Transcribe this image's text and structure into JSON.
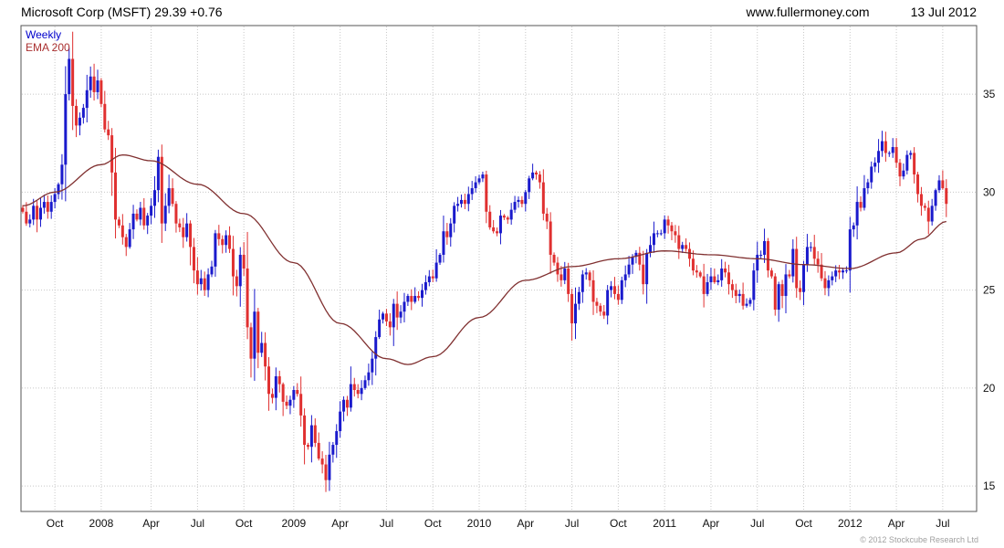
{
  "header": {
    "title": "Microsoft Corp (MSFT) 29.39 +0.76",
    "website": "www.fullermoney.com",
    "date": "13 Jul 2012"
  },
  "legend": {
    "timeframe": "Weekly",
    "overlay": "EMA 200"
  },
  "footer": {
    "copyright": "© 2012 Stockcube Research Ltd"
  },
  "colors": {
    "up": "#1a1acc",
    "down": "#e03030",
    "ema": "#803030",
    "legend_weekly": "#0000cc",
    "legend_ema": "#aa3030",
    "grid": "#c8c8c8",
    "border": "#555555"
  },
  "chart_data": {
    "type": "candlestick",
    "title": "Microsoft Corp (MSFT) 29.39 +0.76",
    "timeframe": "weekly",
    "last_price": 29.39,
    "change": 0.76,
    "ylim": [
      13.7,
      38.5
    ],
    "y_ticks": [
      15,
      20,
      25,
      30,
      35
    ],
    "slots": 268,
    "x_labels": [
      {
        "label": "Oct",
        "index": 9
      },
      {
        "label": "2008",
        "index": 22
      },
      {
        "label": "Apr",
        "index": 36
      },
      {
        "label": "Jul",
        "index": 49
      },
      {
        "label": "Oct",
        "index": 62
      },
      {
        "label": "2009",
        "index": 76
      },
      {
        "label": "Apr",
        "index": 89
      },
      {
        "label": "Jul",
        "index": 102
      },
      {
        "label": "Oct",
        "index": 115
      },
      {
        "label": "2010",
        "index": 128
      },
      {
        "label": "Apr",
        "index": 141
      },
      {
        "label": "Jul",
        "index": 154
      },
      {
        "label": "Oct",
        "index": 167
      },
      {
        "label": "2011",
        "index": 180
      },
      {
        "label": "Apr",
        "index": 193
      },
      {
        "label": "Jul",
        "index": 206
      },
      {
        "label": "Oct",
        "index": 219
      },
      {
        "label": "2012",
        "index": 232
      },
      {
        "label": "Apr",
        "index": 245
      },
      {
        "label": "Jul",
        "index": 258
      }
    ],
    "first_open": 29.2,
    "closes": [
      29.0,
      28.4,
      28.6,
      29.3,
      28.6,
      29.2,
      29.5,
      29.0,
      29.5,
      29.9,
      30.4,
      31.4,
      35.0,
      36.8,
      34.4,
      33.4,
      33.8,
      34.3,
      35.2,
      35.9,
      35.1,
      35.7,
      34.5,
      33.2,
      32.9,
      31.0,
      28.6,
      28.3,
      27.7,
      27.2,
      28.1,
      28.9,
      28.6,
      29.2,
      28.3,
      28.8,
      29.3,
      30.1,
      31.8,
      28.4,
      29.3,
      30.2,
      29.4,
      28.4,
      28.2,
      27.7,
      28.4,
      27.2,
      26.0,
      25.3,
      25.6,
      25.0,
      25.8,
      26.2,
      27.9,
      27.6,
      27.3,
      27.8,
      27.1,
      25.7,
      25.2,
      26.8,
      26.1,
      23.1,
      21.5,
      23.9,
      21.8,
      22.3,
      21.1,
      19.7,
      19.5,
      20.6,
      20.2,
      19.3,
      19.1,
      19.4,
      19.9,
      19.7,
      18.6,
      17.1,
      17.0,
      18.1,
      17.2,
      16.4,
      16.1,
      15.3,
      16.6,
      17.1,
      17.8,
      18.8,
      19.4,
      19.0,
      20.2,
      19.9,
      19.7,
      20.0,
      20.4,
      20.8,
      21.5,
      22.6,
      23.5,
      23.8,
      23.4,
      23.1,
      24.3,
      23.6,
      23.9,
      24.4,
      24.7,
      24.4,
      24.7,
      24.6,
      25.0,
      25.4,
      25.7,
      25.6,
      26.4,
      26.8,
      28.0,
      27.7,
      28.4,
      29.3,
      29.4,
      29.6,
      29.4,
      29.9,
      30.2,
      30.5,
      30.7,
      30.9,
      29.0,
      28.2,
      28.0,
      27.9,
      28.8,
      28.7,
      28.6,
      29.1,
      29.5,
      29.6,
      29.4,
      30.0,
      30.7,
      31.0,
      30.9,
      30.5,
      28.9,
      28.5,
      26.8,
      26.4,
      25.8,
      25.5,
      26.1,
      24.8,
      23.3,
      24.3,
      24.9,
      25.8,
      25.9,
      25.5,
      24.4,
      24.2,
      23.9,
      23.7,
      25.0,
      25.2,
      24.8,
      24.5,
      25.5,
      25.8,
      26.3,
      26.7,
      26.9,
      26.3,
      25.3,
      26.9,
      27.3,
      27.9,
      27.9,
      27.9,
      28.6,
      28.3,
      28.0,
      27.8,
      27.1,
      27.3,
      27.1,
      26.6,
      26.0,
      25.9,
      25.7,
      24.8,
      25.4,
      25.7,
      25.4,
      25.5,
      26.1,
      25.9,
      25.3,
      25.0,
      24.7,
      24.8,
      24.2,
      24.3,
      24.5,
      26.0,
      26.8,
      26.8,
      27.5,
      26.0,
      25.7,
      24.0,
      25.3,
      24.7,
      25.8,
      25.7,
      27.1,
      25.1,
      24.9,
      26.3,
      27.2,
      27.2,
      26.6,
      26.3,
      25.6,
      25.1,
      25.5,
      25.7,
      26.0,
      25.9,
      26.0,
      26.0,
      28.1,
      28.3,
      29.5,
      29.2,
      30.2,
      30.5,
      31.3,
      31.5,
      32.1,
      32.6,
      32.0,
      32.0,
      32.3,
      31.5,
      30.8,
      31.1,
      31.9,
      32.0,
      30.9,
      29.9,
      29.3,
      29.2,
      28.5,
      29.3,
      30.1,
      30.6,
      30.2,
      29.4
    ],
    "ema_200": [
      [
        0,
        29.3
      ],
      [
        9,
        30.0
      ],
      [
        22,
        31.4
      ],
      [
        28,
        31.9
      ],
      [
        36,
        31.6
      ],
      [
        49,
        30.4
      ],
      [
        62,
        28.9
      ],
      [
        76,
        26.4
      ],
      [
        89,
        23.3
      ],
      [
        102,
        21.5
      ],
      [
        108,
        21.2
      ],
      [
        115,
        21.6
      ],
      [
        128,
        23.6
      ],
      [
        141,
        25.5
      ],
      [
        154,
        26.2
      ],
      [
        167,
        26.6
      ],
      [
        180,
        27.0
      ],
      [
        193,
        26.8
      ],
      [
        206,
        26.6
      ],
      [
        219,
        26.3
      ],
      [
        232,
        26.1
      ],
      [
        245,
        26.9
      ],
      [
        252,
        27.6
      ],
      [
        259,
        28.5
      ]
    ]
  }
}
